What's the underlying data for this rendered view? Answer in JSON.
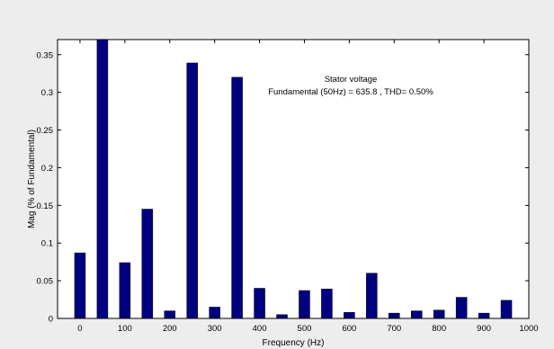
{
  "chart_data": {
    "type": "bar",
    "title": "",
    "xlabel": "Frequency (Hz)",
    "ylabel": "Mag (% of Fundamental)",
    "xlim": [
      -50,
      1000
    ],
    "ylim": [
      0,
      0.37
    ],
    "xticks": [
      0,
      100,
      200,
      300,
      400,
      500,
      600,
      700,
      800,
      900,
      1000
    ],
    "yticks": [
      0,
      0.05,
      0.1,
      0.15,
      0.2,
      0.25,
      0.3,
      0.35
    ],
    "ytick_labels": [
      "0",
      "0.05",
      "0.1",
      "0.15",
      "0.2",
      "0.25",
      "0.3",
      "0.35"
    ],
    "x": [
      0,
      50,
      100,
      150,
      200,
      250,
      300,
      350,
      400,
      450,
      500,
      550,
      600,
      650,
      700,
      750,
      800,
      850,
      900,
      950
    ],
    "values": [
      0.087,
      0.37,
      0.074,
      0.145,
      0.01,
      0.339,
      0.015,
      0.32,
      0.04,
      0.005,
      0.037,
      0.039,
      0.008,
      0.06,
      0.007,
      0.01,
      0.011,
      0.028,
      0.007,
      0.024
    ],
    "bar_color": "#000080",
    "grid": false,
    "annotation": {
      "line1": "Stator voltage",
      "line2": "Fundamental (50Hz) = 635.8 , THD= 0.50%"
    }
  }
}
